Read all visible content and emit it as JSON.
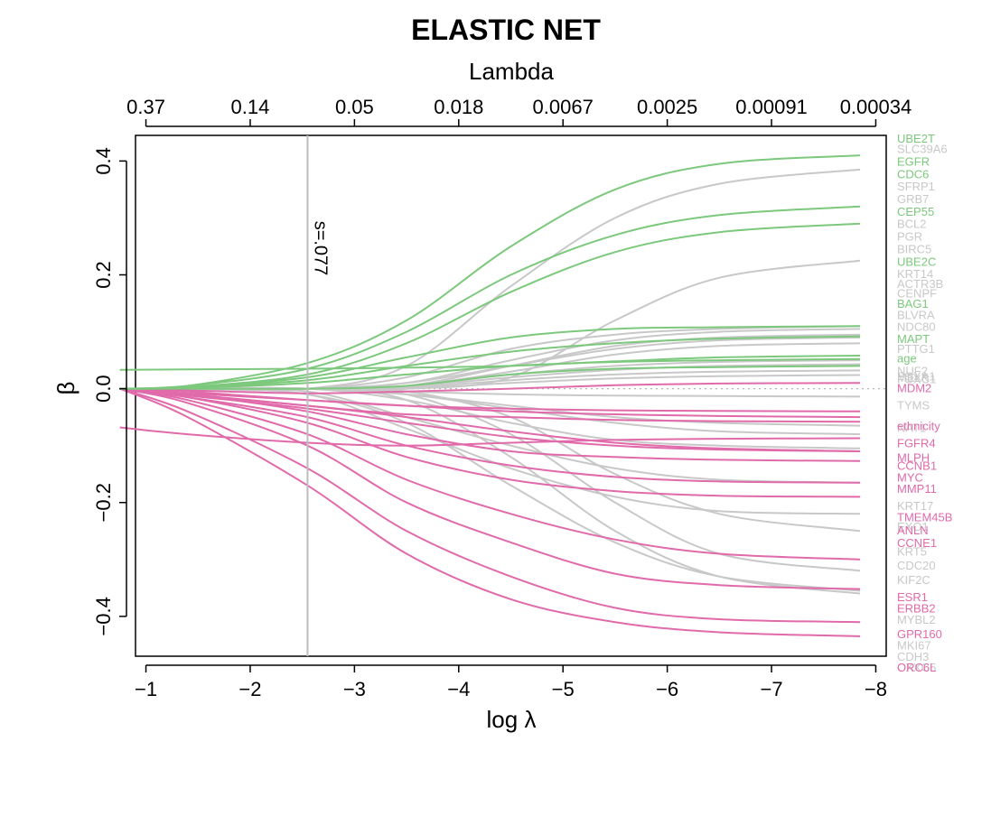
{
  "chart_data": {
    "type": "line",
    "title": "ELASTIC NET",
    "xlabel": "log λ",
    "ylabel": "β",
    "top_axis_label": "Lambda",
    "x_reversed": true,
    "xlim": [
      -0.9,
      -8.1
    ],
    "ylim": [
      -0.47,
      0.445
    ],
    "bottom_ticks": [
      -1,
      -2,
      -3,
      -4,
      -5,
      -6,
      -7,
      -8
    ],
    "bottom_tick_labels": [
      "−1",
      "−2",
      "−3",
      "−4",
      "−5",
      "−6",
      "−7",
      "−8"
    ],
    "top_ticks": [
      {
        "x": -1,
        "label": "0.37"
      },
      {
        "x": -2,
        "label": "0.14"
      },
      {
        "x": -3,
        "label": "0.05"
      },
      {
        "x": -4,
        "label": "0.018"
      },
      {
        "x": -5,
        "label": "0.0067"
      },
      {
        "x": -6,
        "label": "0.0025"
      },
      {
        "x": -7,
        "label": "0.00091"
      },
      {
        "x": -8,
        "label": "0.00034"
      }
    ],
    "y_ticks": [
      -0.4,
      -0.2,
      0.0,
      0.2,
      0.4
    ],
    "y_tick_labels": [
      "−0.4",
      "−0.2",
      "0.0",
      "0.2",
      "0.4"
    ],
    "zero_line": true,
    "vline": {
      "x": -2.55,
      "label": "s=.077",
      "color": "#bdbdbd"
    },
    "colors": {
      "positive": "#7cc87c",
      "negative": "#e06aaa",
      "neutral": "#c8c8c8"
    },
    "x_path": [
      -0.75,
      -1.4,
      -2.55,
      -3.5,
      -4.5,
      -5.5,
      -6.5,
      -7.85
    ],
    "paths": [
      {
        "name": "UBE2T",
        "color": "positive",
        "y": [
          0,
          0.005,
          0.045,
          0.12,
          0.25,
          0.35,
          0.395,
          0.41
        ],
        "label_y": 0.44
      },
      {
        "name": "SLC39A6",
        "color": "neutral",
        "y": [
          0,
          0,
          0,
          0.04,
          0.18,
          0.3,
          0.36,
          0.385
        ],
        "label_y": 0.422
      },
      {
        "name": "EGFR",
        "color": "positive",
        "y": [
          0,
          0.005,
          0.035,
          0.1,
          0.2,
          0.27,
          0.305,
          0.32
        ],
        "label_y": 0.4
      },
      {
        "name": "CDC6",
        "color": "positive",
        "y": [
          0,
          0.003,
          0.025,
          0.08,
          0.17,
          0.24,
          0.275,
          0.29
        ],
        "label_y": 0.378
      },
      {
        "name": "SFRP1",
        "color": "neutral",
        "y": [
          0,
          0,
          0,
          0,
          0.02,
          0.12,
          0.195,
          0.225
        ],
        "label_y": 0.356
      },
      {
        "name": "GRB7",
        "color": "neutral",
        "y": [
          0,
          0,
          0,
          0.02,
          0.07,
          0.095,
          0.105,
          0.11
        ],
        "label_y": 0.334
      },
      {
        "name": "CEP55",
        "color": "positive",
        "y": [
          0,
          0.002,
          0.02,
          0.055,
          0.09,
          0.105,
          0.108,
          0.11
        ],
        "label_y": 0.312
      },
      {
        "name": "BCL2",
        "color": "neutral",
        "y": [
          0,
          0,
          0,
          0.01,
          0.05,
          0.085,
          0.1,
          0.105
        ],
        "label_y": 0.29
      },
      {
        "name": "PGR",
        "color": "neutral",
        "y": [
          0,
          0,
          0,
          0.005,
          0.04,
          0.075,
          0.09,
          0.095
        ],
        "label_y": 0.268
      },
      {
        "name": "BIRC5",
        "color": "neutral",
        "y": [
          0,
          0,
          0,
          0.01,
          0.04,
          0.07,
          0.085,
          0.09
        ],
        "label_y": 0.246
      },
      {
        "name": "UBE2C",
        "color": "positive",
        "y": [
          0,
          0.002,
          0.015,
          0.04,
          0.065,
          0.08,
          0.088,
          0.092
        ],
        "label_y": 0.224
      },
      {
        "name": "KRT14",
        "color": "neutral",
        "y": [
          0,
          0,
          0,
          0.005,
          0.03,
          0.06,
          0.075,
          0.08
        ],
        "label_y": 0.202
      },
      {
        "name": "age",
        "color": "positive",
        "y": [
          0.033,
          0.034,
          0.035,
          0.037,
          0.04,
          0.048,
          0.055,
          0.058
        ],
        "label_y": 0.054
      },
      {
        "name": "MAPT",
        "color": "positive",
        "y": [
          0,
          0.001,
          0.01,
          0.025,
          0.04,
          0.047,
          0.05,
          0.052
        ],
        "label_y": 0.088
      },
      {
        "name": "NAT1",
        "color": "neutral",
        "y": [
          0,
          0,
          0,
          0.005,
          0.025,
          0.04,
          0.047,
          0.05
        ],
        "label_y": -0.068
      },
      {
        "name": "NDC80",
        "color": "neutral",
        "y": [
          0,
          0,
          0,
          0.004,
          0.02,
          0.033,
          0.04,
          0.043
        ],
        "label_y": 0.11
      },
      {
        "name": "PTTG1",
        "color": "neutral",
        "y": [
          0,
          0,
          0,
          0.002,
          0.015,
          0.025,
          0.03,
          0.032
        ],
        "label_y": 0.071
      },
      {
        "name": "NUF2",
        "color": "neutral",
        "y": [
          0,
          0,
          0,
          0,
          0.01,
          0.018,
          0.022,
          0.024
        ],
        "label_y": 0.032
      },
      {
        "name": "BAG1",
        "color": "positive",
        "y": [
          0,
          0,
          0,
          0.005,
          0.025,
          0.035,
          0.038,
          0.04
        ],
        "label_y": 0.15
      },
      {
        "name": "MDM2",
        "color": "negative",
        "y": [
          0,
          -0.003,
          -0.008,
          -0.005,
          0,
          0.006,
          0.009,
          0.01
        ],
        "label_y": 0.002
      },
      {
        "name": "TYMS",
        "color": "neutral",
        "y": [
          0,
          0,
          0,
          -0.005,
          -0.01,
          -0.012,
          -0.013,
          -0.014
        ],
        "label_y": -0.028
      },
      {
        "name": "ethnicity",
        "color": "negative",
        "y": [
          0,
          -0.005,
          -0.02,
          -0.03,
          -0.035,
          -0.038,
          -0.039,
          -0.04
        ],
        "label_y": -0.065
      },
      {
        "name": "KRT17",
        "color": "neutral",
        "y": [
          0,
          0,
          0,
          -0.01,
          -0.03,
          -0.05,
          -0.06,
          -0.065
        ],
        "label_y": -0.205
      },
      {
        "name": "EXO1",
        "color": "neutral",
        "y": [
          0,
          0,
          0,
          -0.01,
          -0.035,
          -0.06,
          -0.075,
          -0.08
        ],
        "label_y": -0.242
      },
      {
        "name": "MLPH",
        "color": "negative",
        "y": [
          0,
          -0.01,
          -0.03,
          -0.045,
          -0.05,
          -0.055,
          -0.057,
          -0.058
        ],
        "label_y": -0.12
      },
      {
        "name": "FGFR4",
        "color": "negative",
        "y": [
          0,
          -0.008,
          -0.02,
          -0.03,
          -0.04,
          -0.045,
          -0.048,
          -0.05
        ],
        "label_y": -0.095
      },
      {
        "name": "KRT5",
        "color": "neutral",
        "y": [
          0,
          0,
          0,
          -0.02,
          -0.06,
          -0.09,
          -0.1,
          -0.105
        ],
        "label_y": -0.285
      },
      {
        "name": "CCNB1",
        "color": "negative",
        "y": [
          0,
          -0.012,
          -0.035,
          -0.06,
          -0.085,
          -0.1,
          -0.107,
          -0.11
        ],
        "label_y": -0.135
      },
      {
        "name": "MMP11",
        "color": "negative",
        "y": [
          0,
          -0.01,
          -0.03,
          -0.05,
          -0.075,
          -0.095,
          -0.105,
          -0.11
        ],
        "label_y": -0.175
      },
      {
        "name": "CDC20",
        "color": "neutral",
        "y": [
          0,
          0,
          -0.005,
          -0.05,
          -0.1,
          -0.14,
          -0.16,
          -0.165
        ],
        "label_y": -0.31
      },
      {
        "name": "TMEM45B",
        "color": "negative",
        "y": [
          0,
          -0.01,
          -0.04,
          -0.08,
          -0.11,
          -0.12,
          -0.125,
          -0.127
        ],
        "label_y": -0.225
      },
      {
        "name": "ANLN",
        "color": "negative",
        "y": [
          0,
          -0.015,
          -0.05,
          -0.1,
          -0.135,
          -0.155,
          -0.163,
          -0.165
        ],
        "label_y": -0.248
      },
      {
        "name": "CCNE1",
        "color": "negative",
        "y": [
          0,
          -0.015,
          -0.06,
          -0.12,
          -0.16,
          -0.18,
          -0.188,
          -0.19
        ],
        "label_y": -0.27
      },
      {
        "name": "KIF2C",
        "color": "neutral",
        "y": [
          0,
          0,
          -0.01,
          -0.07,
          -0.14,
          -0.19,
          -0.215,
          -0.22
        ],
        "label_y": -0.335
      },
      {
        "name": "MYC",
        "color": "negative",
        "y": [
          -0.068,
          -0.08,
          -0.095,
          -0.1,
          -0.095,
          -0.09,
          -0.088,
          -0.087
        ],
        "label_y": -0.155
      },
      {
        "name": "ESR1",
        "color": "negative",
        "y": [
          0,
          -0.02,
          -0.08,
          -0.16,
          -0.22,
          -0.265,
          -0.29,
          -0.3
        ],
        "label_y": -0.365
      },
      {
        "name": "ERBB2",
        "color": "negative",
        "y": [
          0,
          -0.025,
          -0.1,
          -0.2,
          -0.27,
          -0.325,
          -0.345,
          -0.352
        ],
        "label_y": -0.385
      },
      {
        "name": "MYBL2",
        "color": "neutral",
        "y": [
          0,
          0,
          -0.01,
          -0.06,
          -0.17,
          -0.27,
          -0.33,
          -0.355
        ],
        "label_y": -0.405
      },
      {
        "name": "GPR160",
        "color": "negative",
        "y": [
          0,
          -0.04,
          -0.14,
          -0.25,
          -0.33,
          -0.385,
          -0.405,
          -0.41
        ],
        "label_y": -0.43
      },
      {
        "name": "MKI67",
        "color": "neutral",
        "y": [
          0,
          0,
          0,
          -0.02,
          -0.12,
          -0.25,
          -0.33,
          -0.36
        ],
        "label_y": -0.45
      },
      {
        "name": "CDH3",
        "color": "neutral",
        "y": [
          0,
          0,
          0,
          -0.01,
          -0.08,
          -0.2,
          -0.29,
          -0.32
        ],
        "label_y": -0.47
      },
      {
        "name": "CXXC5",
        "color": "neutral",
        "y": [
          0,
          0,
          0,
          -0.005,
          -0.05,
          -0.15,
          -0.22,
          -0.25
        ],
        "label_y": -0.49
      },
      {
        "name": "ORC6L",
        "color": "negative",
        "y": [
          0,
          -0.05,
          -0.17,
          -0.29,
          -0.37,
          -0.41,
          -0.428,
          -0.435
        ],
        "label_y": -0.51
      }
    ],
    "right_labels_extra": [
      {
        "name": "ACTR3B",
        "color": "neutral",
        "label_y": 0.185
      },
      {
        "name": "CENPF",
        "color": "neutral",
        "label_y": 0.168
      },
      {
        "name": "BLVRA",
        "color": "neutral",
        "label_y": 0.13
      },
      {
        "name": "MELK",
        "color": "neutral",
        "label_y": 0.02
      },
      {
        "name": "FOXA1",
        "color": "neutral",
        "label_y": 0.022
      },
      {
        "name": "FOXC1",
        "color": "neutral",
        "label_y": 0.018
      }
    ]
  }
}
